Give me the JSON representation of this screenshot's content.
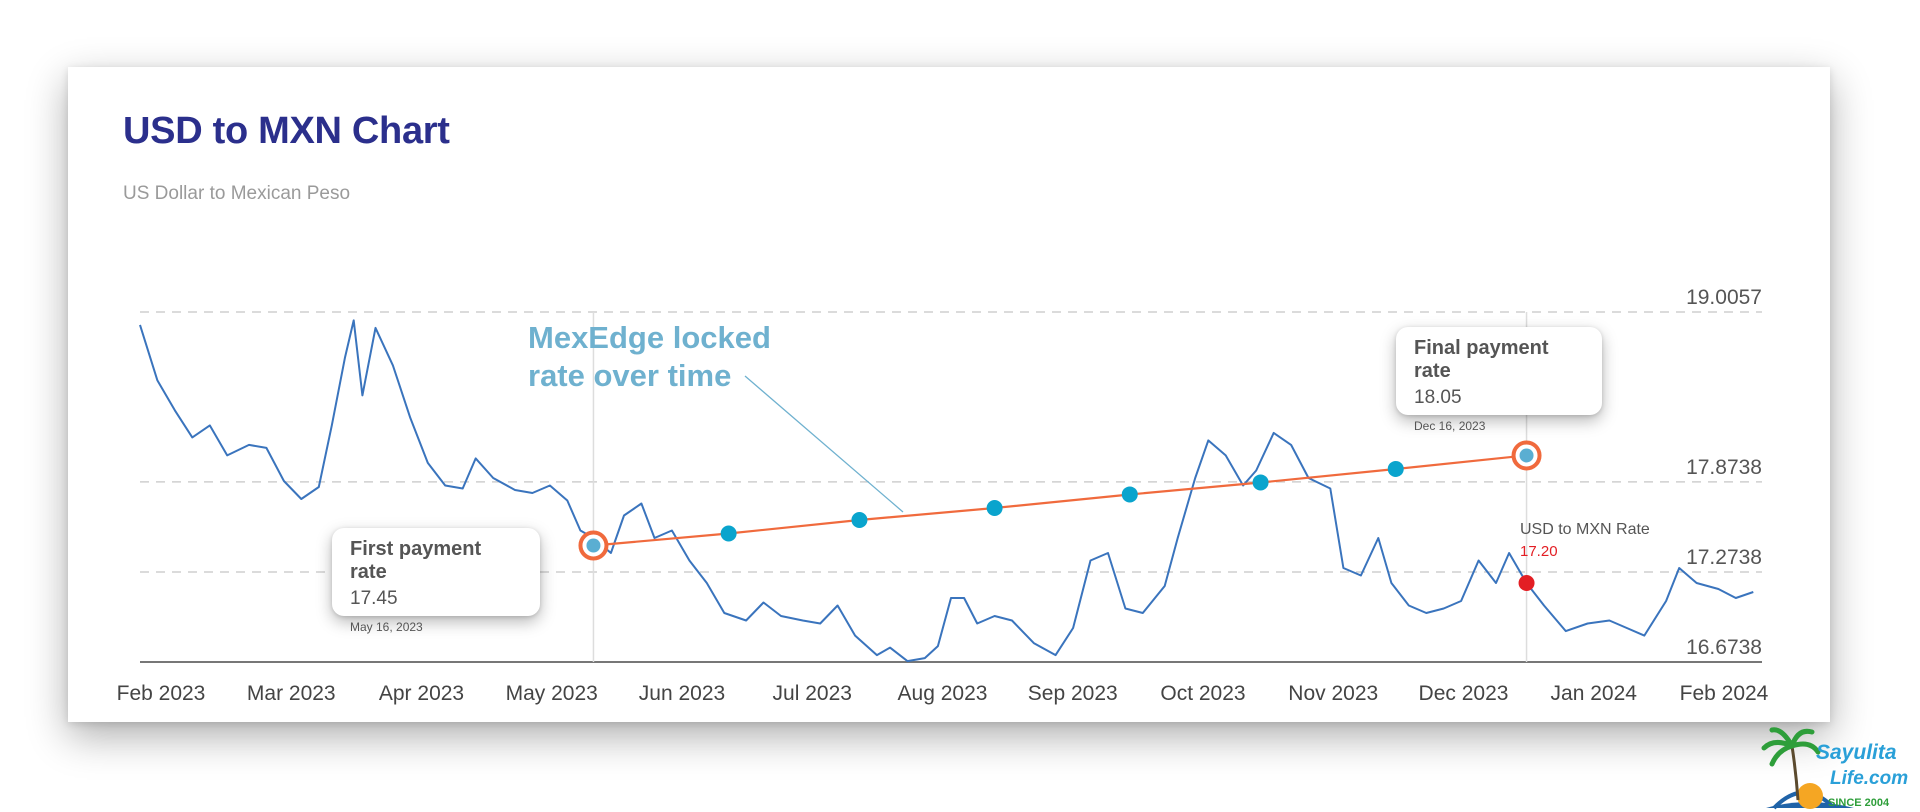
{
  "header": {
    "title": "USD to MXN Chart",
    "subtitle": "US Dollar to Mexican Peso"
  },
  "annotation": {
    "line1": "MexEdge locked",
    "line2": "rate over time"
  },
  "first_tooltip": {
    "title": "First payment rate",
    "value": "17.45",
    "date": "May 16, 2023"
  },
  "final_tooltip": {
    "title": "Final payment rate",
    "value": "18.05",
    "date": "Dec 16, 2023"
  },
  "current_label": {
    "name": "USD to MXN Rate",
    "value": "17.20"
  },
  "colors": {
    "title": "#2b2f8c",
    "line": "#3a74bd",
    "locked": "#f06a3d",
    "dot": "#0aa4cd",
    "current": "#e31e24",
    "annotation": "#6fb1cf"
  },
  "logo": {
    "line1": "Sayulita",
    "line2": "Life.com",
    "tagline": "SINCE 2004"
  },
  "chart_data": {
    "type": "line",
    "title": "USD to MXN Chart",
    "subtitle": "US Dollar to Mexican Peso",
    "x_ticks": [
      "Feb 2023",
      "Mar 2023",
      "Apr 2023",
      "May 2023",
      "Jun 2023",
      "Jul 2023",
      "Aug 2023",
      "Sep 2023",
      "Oct 2023",
      "Nov 2023",
      "Dec 2023",
      "Jan 2024",
      "Feb 2024"
    ],
    "y_ticks": [
      {
        "value": 19.0057,
        "label": "19.0057"
      },
      {
        "value": 17.8738,
        "label": "17.8738"
      },
      {
        "value": 17.2738,
        "label": "17.2738"
      },
      {
        "value": 16.6738,
        "label": "16.6738"
      }
    ],
    "ylim": [
      16.6738,
      19.0057
    ],
    "series": [
      {
        "name": "USD to MXN Rate",
        "points": [
          [
            "2023-02-01",
            18.92
          ],
          [
            "2023-02-05",
            18.55
          ],
          [
            "2023-02-09",
            18.35
          ],
          [
            "2023-02-13",
            18.17
          ],
          [
            "2023-02-17",
            18.25
          ],
          [
            "2023-02-21",
            18.05
          ],
          [
            "2023-02-26",
            18.12
          ],
          [
            "2023-03-02",
            18.1
          ],
          [
            "2023-03-06",
            17.88
          ],
          [
            "2023-03-10",
            17.76
          ],
          [
            "2023-03-14",
            17.84
          ],
          [
            "2023-03-17",
            18.25
          ],
          [
            "2023-03-20",
            18.7
          ],
          [
            "2023-03-22",
            18.95
          ],
          [
            "2023-03-24",
            18.45
          ],
          [
            "2023-03-27",
            18.9
          ],
          [
            "2023-03-31",
            18.65
          ],
          [
            "2023-04-04",
            18.3
          ],
          [
            "2023-04-08",
            18.0
          ],
          [
            "2023-04-12",
            17.85
          ],
          [
            "2023-04-16",
            17.83
          ],
          [
            "2023-04-19",
            18.03
          ],
          [
            "2023-04-23",
            17.9
          ],
          [
            "2023-04-28",
            17.82
          ],
          [
            "2023-05-02",
            17.8
          ],
          [
            "2023-05-06",
            17.85
          ],
          [
            "2023-05-10",
            17.75
          ],
          [
            "2023-05-13",
            17.55
          ],
          [
            "2023-05-16",
            17.5
          ],
          [
            "2023-05-20",
            17.4
          ],
          [
            "2023-05-23",
            17.65
          ],
          [
            "2023-05-27",
            17.73
          ],
          [
            "2023-05-30",
            17.5
          ],
          [
            "2023-06-03",
            17.55
          ],
          [
            "2023-06-07",
            17.35
          ],
          [
            "2023-06-11",
            17.2
          ],
          [
            "2023-06-15",
            17.0
          ],
          [
            "2023-06-20",
            16.95
          ],
          [
            "2023-06-24",
            17.07
          ],
          [
            "2023-06-28",
            16.98
          ],
          [
            "2023-07-03",
            16.95
          ],
          [
            "2023-07-07",
            16.93
          ],
          [
            "2023-07-11",
            17.05
          ],
          [
            "2023-07-15",
            16.85
          ],
          [
            "2023-07-20",
            16.72
          ],
          [
            "2023-07-23",
            16.77
          ],
          [
            "2023-07-27",
            16.68
          ],
          [
            "2023-07-31",
            16.7
          ],
          [
            "2023-08-03",
            16.78
          ],
          [
            "2023-08-06",
            17.1
          ],
          [
            "2023-08-09",
            17.1
          ],
          [
            "2023-08-12",
            16.93
          ],
          [
            "2023-08-16",
            16.98
          ],
          [
            "2023-08-20",
            16.95
          ],
          [
            "2023-08-25",
            16.8
          ],
          [
            "2023-08-30",
            16.72
          ],
          [
            "2023-09-03",
            16.9
          ],
          [
            "2023-09-07",
            17.35
          ],
          [
            "2023-09-11",
            17.4
          ],
          [
            "2023-09-15",
            17.03
          ],
          [
            "2023-09-19",
            17.0
          ],
          [
            "2023-09-24",
            17.18
          ],
          [
            "2023-09-27",
            17.5
          ],
          [
            "2023-10-01",
            17.9
          ],
          [
            "2023-10-04",
            18.15
          ],
          [
            "2023-10-08",
            18.05
          ],
          [
            "2023-10-12",
            17.85
          ],
          [
            "2023-10-15",
            17.95
          ],
          [
            "2023-10-19",
            18.2
          ],
          [
            "2023-10-23",
            18.12
          ],
          [
            "2023-10-27",
            17.9
          ],
          [
            "2023-11-01",
            17.83
          ],
          [
            "2023-11-04",
            17.3
          ],
          [
            "2023-11-08",
            17.25
          ],
          [
            "2023-11-12",
            17.5
          ],
          [
            "2023-11-15",
            17.2
          ],
          [
            "2023-11-19",
            17.05
          ],
          [
            "2023-11-23",
            17.0
          ],
          [
            "2023-11-27",
            17.03
          ],
          [
            "2023-12-01",
            17.08
          ],
          [
            "2023-12-05",
            17.35
          ],
          [
            "2023-12-09",
            17.2
          ],
          [
            "2023-12-12",
            17.4
          ],
          [
            "2023-12-16",
            17.2
          ],
          [
            "2023-12-20",
            17.05
          ],
          [
            "2023-12-25",
            16.88
          ],
          [
            "2023-12-30",
            16.93
          ],
          [
            "2024-01-04",
            16.95
          ],
          [
            "2024-01-08",
            16.9
          ],
          [
            "2024-01-12",
            16.85
          ],
          [
            "2024-01-17",
            17.08
          ],
          [
            "2024-01-20",
            17.3
          ],
          [
            "2024-01-24",
            17.2
          ],
          [
            "2024-01-29",
            17.16
          ],
          [
            "2024-02-02",
            17.1
          ],
          [
            "2024-02-06",
            17.14
          ]
        ]
      },
      {
        "name": "MexEdge locked rate over time",
        "points": [
          [
            "2023-05-16",
            17.45
          ],
          [
            "2023-06-16",
            17.53
          ],
          [
            "2023-07-16",
            17.62
          ],
          [
            "2023-08-16",
            17.7
          ],
          [
            "2023-09-16",
            17.79
          ],
          [
            "2023-10-16",
            17.87
          ],
          [
            "2023-11-16",
            17.96
          ],
          [
            "2023-12-16",
            18.05
          ]
        ]
      }
    ],
    "markers": [
      {
        "label": "First payment rate",
        "date": "2023-05-16",
        "value": 17.45
      },
      {
        "label": "Final payment rate",
        "date": "2023-12-16",
        "value": 18.05
      },
      {
        "label": "USD to MXN Rate",
        "date": "2023-12-16",
        "value": 17.2
      }
    ],
    "grid": true,
    "legend": "none"
  }
}
